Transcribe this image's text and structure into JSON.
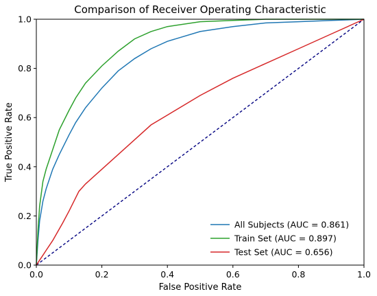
{
  "chart_data": {
    "type": "line",
    "title": "Comparison of Receiver Operating Characteristic",
    "xlabel": "False Positive Rate",
    "ylabel": "True Positive Rate",
    "xlim": [
      0.0,
      1.0
    ],
    "ylim": [
      0.0,
      1.0
    ],
    "xticks": [
      "0.0",
      "0.2",
      "0.4",
      "0.6",
      "0.8",
      "1.0"
    ],
    "yticks": [
      "0.0",
      "0.2",
      "0.4",
      "0.6",
      "0.8",
      "1.0"
    ],
    "grid": false,
    "legend_position": "lower-right",
    "series": [
      {
        "name": "All Subjects (AUC = 0.861)",
        "color": "#1f77b4",
        "x": [
          0.0,
          0.005,
          0.01,
          0.02,
          0.03,
          0.05,
          0.07,
          0.1,
          0.12,
          0.15,
          0.2,
          0.25,
          0.3,
          0.35,
          0.4,
          0.5,
          0.6,
          0.7,
          0.8,
          0.9,
          1.0
        ],
        "y": [
          0.0,
          0.1,
          0.18,
          0.26,
          0.31,
          0.39,
          0.45,
          0.53,
          0.58,
          0.64,
          0.72,
          0.79,
          0.84,
          0.88,
          0.91,
          0.95,
          0.97,
          0.985,
          0.99,
          0.995,
          1.0
        ]
      },
      {
        "name": "Train Set (AUC = 0.897)",
        "color": "#2ca02c",
        "x": [
          0.0,
          0.005,
          0.01,
          0.02,
          0.03,
          0.05,
          0.07,
          0.1,
          0.12,
          0.15,
          0.2,
          0.25,
          0.3,
          0.35,
          0.4,
          0.5,
          0.6,
          0.7,
          0.8,
          0.9,
          1.0
        ],
        "y": [
          0.0,
          0.14,
          0.24,
          0.34,
          0.39,
          0.47,
          0.55,
          0.63,
          0.68,
          0.74,
          0.81,
          0.87,
          0.92,
          0.95,
          0.97,
          0.99,
          0.995,
          1.0,
          1.0,
          1.0,
          1.0
        ]
      },
      {
        "name": "Test Set (AUC = 0.656)",
        "color": "#d62728",
        "x": [
          0.0,
          0.01,
          0.02,
          0.03,
          0.05,
          0.08,
          0.1,
          0.13,
          0.15,
          0.2,
          0.25,
          0.3,
          0.35,
          0.4,
          0.5,
          0.6,
          0.7,
          0.8,
          0.9,
          1.0
        ],
        "y": [
          0.0,
          0.02,
          0.04,
          0.06,
          0.1,
          0.17,
          0.22,
          0.3,
          0.33,
          0.39,
          0.45,
          0.51,
          0.57,
          0.61,
          0.69,
          0.76,
          0.82,
          0.88,
          0.94,
          1.0
        ]
      },
      {
        "name": "",
        "color": "#000080",
        "dashed": true,
        "x": [
          0.0,
          1.0
        ],
        "y": [
          0.0,
          1.0
        ]
      }
    ]
  }
}
